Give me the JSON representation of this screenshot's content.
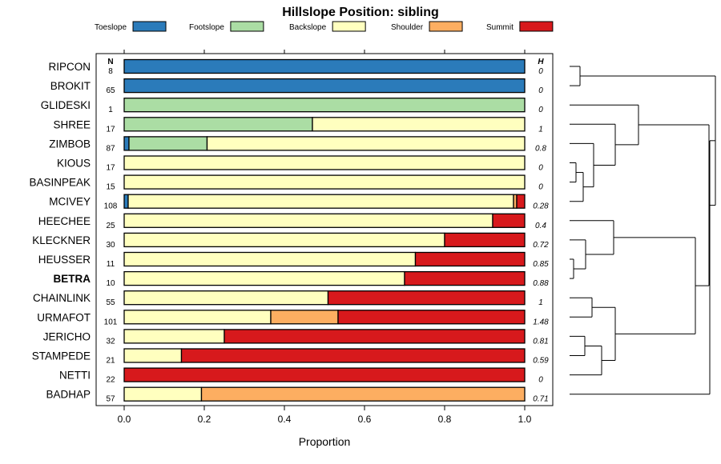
{
  "chart_data": {
    "type": "bar",
    "orientation": "horizontal-stacked",
    "title": "Hillslope Position: sibling",
    "xlabel": "Proportion",
    "ylabel": "",
    "xlim": [
      0,
      1
    ],
    "xticks": [
      "0.0",
      "0.2",
      "0.4",
      "0.6",
      "0.8",
      "1.0"
    ],
    "n_header": "N",
    "h_header": "H",
    "legend": [
      {
        "name": "Toeslope",
        "color": "#2B7BBA"
      },
      {
        "name": "Footslope",
        "color": "#ABDDA4"
      },
      {
        "name": "Backslope",
        "color": "#FFFFBF"
      },
      {
        "name": "Shoulder",
        "color": "#FDAE61"
      },
      {
        "name": "Summit",
        "color": "#D7191C"
      }
    ],
    "rows": [
      {
        "label": "RIPCON",
        "bold": false,
        "n": "8",
        "h": "0",
        "values": [
          1.0,
          0,
          0,
          0,
          0
        ]
      },
      {
        "label": "BROKIT",
        "bold": false,
        "n": "65",
        "h": "0",
        "values": [
          1.0,
          0,
          0,
          0,
          0
        ]
      },
      {
        "label": "GLIDESKI",
        "bold": false,
        "n": "1",
        "h": "0",
        "values": [
          0,
          1.0,
          0,
          0,
          0
        ]
      },
      {
        "label": "SHREE",
        "bold": false,
        "n": "17",
        "h": "1",
        "values": [
          0,
          0.47,
          0.53,
          0,
          0
        ]
      },
      {
        "label": "ZIMBOB",
        "bold": false,
        "n": "87",
        "h": "0.8",
        "values": [
          0.012,
          0.195,
          0.793,
          0,
          0
        ]
      },
      {
        "label": "KIOUS",
        "bold": false,
        "n": "17",
        "h": "0",
        "values": [
          0,
          0,
          1.0,
          0,
          0
        ]
      },
      {
        "label": "BASINPEAK",
        "bold": false,
        "n": "15",
        "h": "0",
        "values": [
          0,
          0,
          1.0,
          0,
          0
        ]
      },
      {
        "label": "MCIVEY",
        "bold": false,
        "n": "108",
        "h": "0.28",
        "values": [
          0.01,
          0,
          0.962,
          0.008,
          0.02
        ]
      },
      {
        "label": "HEECHEE",
        "bold": false,
        "n": "25",
        "h": "0.4",
        "values": [
          0,
          0,
          0.92,
          0,
          0.08
        ]
      },
      {
        "label": "KLECKNER",
        "bold": false,
        "n": "30",
        "h": "0.72",
        "values": [
          0,
          0,
          0.8,
          0,
          0.2
        ]
      },
      {
        "label": "HEUSSER",
        "bold": false,
        "n": "11",
        "h": "0.85",
        "values": [
          0,
          0,
          0.727,
          0,
          0.273
        ]
      },
      {
        "label": "BETRA",
        "bold": true,
        "n": "10",
        "h": "0.88",
        "values": [
          0,
          0,
          0.7,
          0,
          0.3
        ]
      },
      {
        "label": "CHAINLINK",
        "bold": false,
        "n": "55",
        "h": "1",
        "values": [
          0,
          0,
          0.509,
          0,
          0.491
        ]
      },
      {
        "label": "URMAFOT",
        "bold": false,
        "n": "101",
        "h": "1.48",
        "values": [
          0,
          0,
          0.366,
          0.168,
          0.466
        ]
      },
      {
        "label": "JERICHO",
        "bold": false,
        "n": "32",
        "h": "0.81",
        "values": [
          0,
          0,
          0.25,
          0,
          0.75
        ]
      },
      {
        "label": "STAMPEDE",
        "bold": false,
        "n": "21",
        "h": "0.59",
        "values": [
          0,
          0,
          0.143,
          0,
          0.857
        ]
      },
      {
        "label": "NETTI",
        "bold": false,
        "n": "22",
        "h": "0",
        "values": [
          0,
          0,
          0,
          0,
          1.0
        ]
      },
      {
        "label": "BADHAP",
        "bold": false,
        "n": "57",
        "h": "0.71",
        "values": [
          0,
          0,
          0.193,
          0.807,
          0
        ]
      }
    ],
    "dendrogram": {
      "orientation": "right",
      "leaves": "rows"
    }
  }
}
